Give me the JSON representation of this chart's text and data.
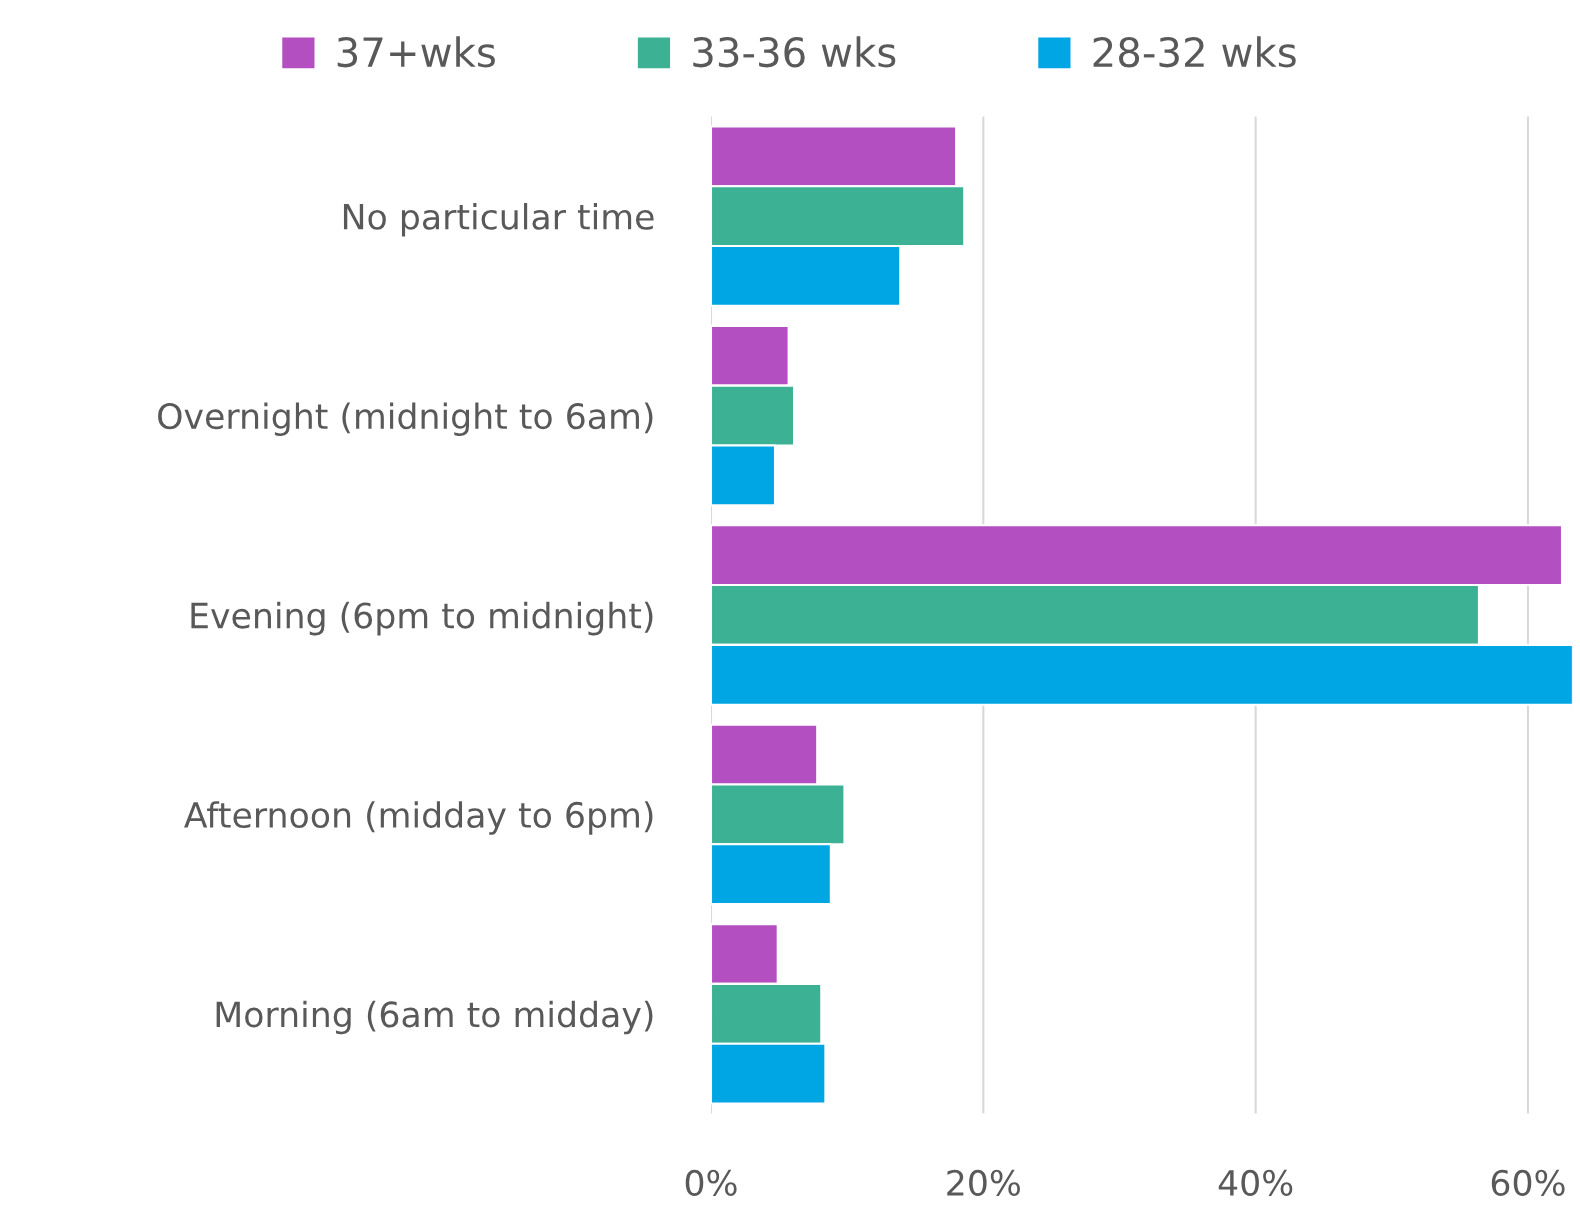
{
  "chart_data": {
    "type": "bar",
    "orientation": "horizontal",
    "categories": [
      "No particular time",
      "Overnight (midnight to 6am)",
      "Evening (6pm to midnight)",
      "Afternoon (midday to 6pm)",
      "Morning (6am to midday)"
    ],
    "series": [
      {
        "name": "37+wks",
        "color": "#b44fc1",
        "values": [
          18.0,
          5.7,
          62.5,
          7.8,
          4.9
        ]
      },
      {
        "name": "33-36 wks",
        "color": "#3cb194",
        "values": [
          18.6,
          6.1,
          56.4,
          9.8,
          8.1
        ]
      },
      {
        "name": "28-32 wks",
        "color": "#00a6e3",
        "values": [
          13.9,
          4.7,
          63.3,
          8.8,
          8.4
        ]
      }
    ],
    "xlim": [
      0,
      63.3
    ],
    "xticks": [
      {
        "value": 0,
        "label": "0%"
      },
      {
        "value": 20,
        "label": "20%"
      },
      {
        "value": 40,
        "label": "40%"
      },
      {
        "value": 60,
        "label": "60%"
      }
    ],
    "grid": "x",
    "legend": "top"
  }
}
